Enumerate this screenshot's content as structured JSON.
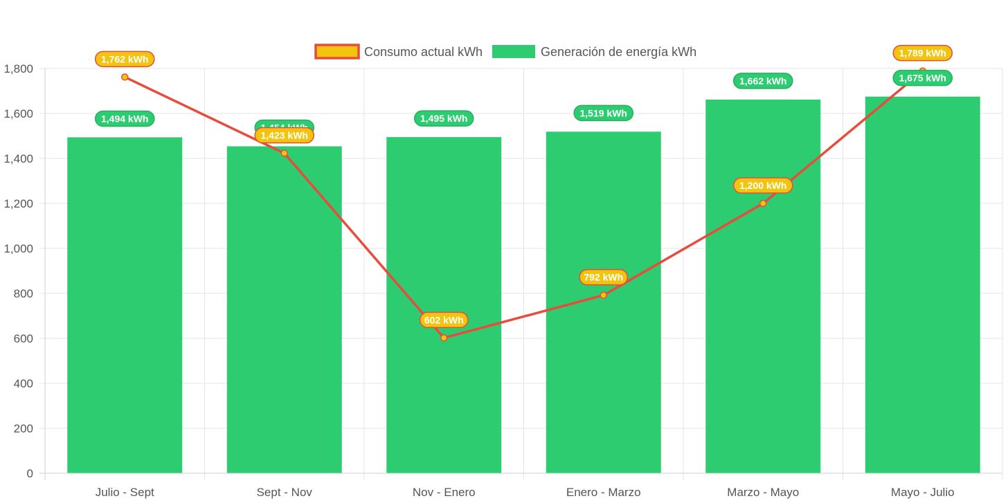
{
  "chart_data": {
    "type": "bar",
    "categories": [
      "Julio - Sept",
      "Sept - Nov",
      "Nov - Enero",
      "Enero - Marzo",
      "Marzo - Mayo",
      "Mayo - Julio"
    ],
    "series": [
      {
        "name": "Generación de energía kWh",
        "type": "bar",
        "values": [
          1494,
          1454,
          1495,
          1519,
          1662,
          1675
        ],
        "labels": [
          "1,494 kWh",
          "1,454 kWh",
          "1,495 kWh",
          "1,519 kWh",
          "1,662 kWh",
          "1,675 kWh"
        ],
        "color": "#2ecc71",
        "label_border": "#27ae60"
      },
      {
        "name": "Consumo actual kWh",
        "type": "line",
        "values": [
          1762,
          1423,
          602,
          792,
          1200,
          1789
        ],
        "labels": [
          "1,762 kWh",
          "1,423 kWh",
          "602 kWh",
          "792 kWh",
          "1,200 kWh",
          "1,789 kWh"
        ],
        "color": "#f1c40f",
        "line_color": "#e74c3c"
      }
    ],
    "legend": [
      "Consumo actual kWh",
      "Generación de energía kWh"
    ],
    "legend_position": "top",
    "ylim": [
      0,
      1800
    ],
    "yticks": [
      "0",
      "200",
      "400",
      "600",
      "800",
      "1,000",
      "1,200",
      "1,400",
      "1,600",
      "1,800"
    ],
    "ytick_values": [
      0,
      200,
      400,
      600,
      800,
      1000,
      1200,
      1400,
      1600,
      1800
    ],
    "grid": true,
    "title": "",
    "xlabel": "",
    "ylabel": ""
  }
}
